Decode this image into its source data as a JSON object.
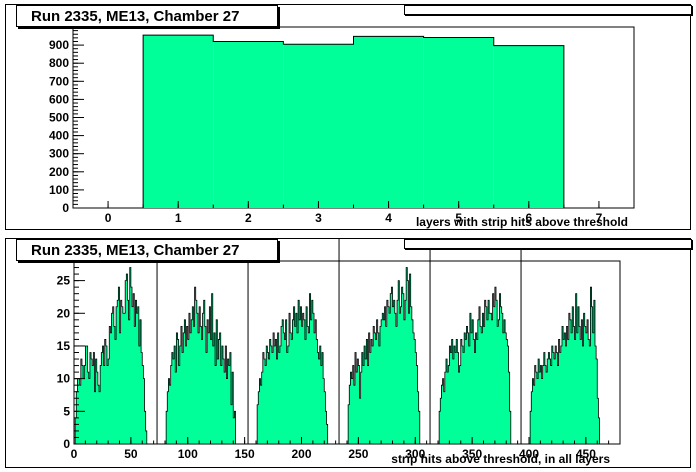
{
  "chart_data": [
    {
      "type": "bar",
      "title": "Run 2335, ME13, Chamber 27",
      "xlabel": "layers with strip hits above threshold",
      "ylabel": "",
      "xlim": [
        -0.5,
        7.5
      ],
      "ylim": [
        0,
        1000
      ],
      "xticks": [
        "0",
        "1",
        "2",
        "3",
        "4",
        "5",
        "6",
        "7"
      ],
      "yticks": [
        "0",
        "100",
        "200",
        "300",
        "400",
        "500",
        "600",
        "700",
        "800",
        "900"
      ],
      "x": [
        1,
        2,
        3,
        4,
        5,
        6
      ],
      "values": [
        955,
        920,
        905,
        948,
        942,
        897
      ],
      "fill_color": "#00ff99"
    },
    {
      "type": "bar",
      "title": "Run 2335, ME13, Chamber 27",
      "xlabel": "strip hits above threshold, in all layers",
      "ylabel": "",
      "xlim": [
        0,
        480
      ],
      "ylim": [
        0,
        28
      ],
      "xticks": [
        "0",
        "50",
        "100",
        "150",
        "200",
        "250",
        "300",
        "350",
        "400",
        "450"
      ],
      "yticks": [
        "0",
        "5",
        "10",
        "15",
        "20",
        "25"
      ],
      "bin_width": 1,
      "segments": [
        {
          "start": 1,
          "values": [
            4,
            8,
            10,
            10,
            9,
            13,
            12,
            10,
            12,
            15,
            15,
            11,
            10,
            14,
            13,
            12,
            14,
            8,
            13,
            11,
            9,
            8,
            12,
            14,
            15,
            12,
            16,
            15,
            12,
            13,
            18,
            17,
            20,
            21,
            18,
            16,
            21,
            22,
            24,
            17,
            22,
            21,
            20,
            20,
            25,
            26,
            22,
            19,
            27,
            24,
            21,
            23,
            18,
            22,
            20,
            21,
            15,
            19,
            14,
            12,
            10,
            5,
            2
          ]
        },
        {
          "start": 81,
          "values": [
            5,
            8,
            10,
            9,
            12,
            14,
            13,
            15,
            11,
            17,
            16,
            12,
            15,
            18,
            14,
            17,
            19,
            15,
            18,
            16,
            20,
            17,
            19,
            21,
            18,
            24,
            22,
            20,
            17,
            21,
            18,
            16,
            20,
            22,
            18,
            14,
            19,
            17,
            21,
            16,
            23,
            15,
            17,
            12,
            19,
            13,
            16,
            17,
            12,
            15,
            13,
            11,
            15,
            10,
            13,
            12,
            14,
            6,
            11,
            4,
            5
          ]
        },
        {
          "start": 161,
          "values": [
            6,
            8,
            10,
            9,
            11,
            14,
            13,
            12,
            15,
            14,
            13,
            16,
            15,
            14,
            17,
            15,
            16,
            13,
            17,
            14,
            15,
            18,
            19,
            17,
            16,
            19,
            14,
            15,
            20,
            17,
            16,
            19,
            21,
            18,
            20,
            17,
            22,
            19,
            21,
            18,
            20,
            19,
            16,
            21,
            18,
            17,
            23,
            19,
            22,
            20,
            17,
            19,
            16,
            14,
            13,
            15,
            12,
            14,
            10,
            8,
            5,
            3
          ]
        },
        {
          "start": 241,
          "values": [
            6,
            9,
            11,
            10,
            12,
            9,
            14,
            11,
            13,
            12,
            7,
            11,
            14,
            12,
            15,
            13,
            16,
            12,
            17,
            14,
            16,
            15,
            18,
            17,
            16,
            19,
            17,
            15,
            18,
            19,
            20,
            19,
            21,
            18,
            22,
            21,
            20,
            23,
            24,
            21,
            22,
            20,
            18,
            22,
            25,
            20,
            21,
            24,
            23,
            19,
            22,
            27,
            25,
            20,
            26,
            21,
            19,
            17,
            16,
            14,
            12,
            8,
            5
          ]
        },
        {
          "start": 321,
          "values": [
            5,
            7,
            9,
            10,
            8,
            11,
            13,
            11,
            12,
            15,
            14,
            16,
            13,
            15,
            14,
            16,
            14,
            11,
            12,
            16,
            15,
            14,
            17,
            16,
            18,
            17,
            15,
            20,
            17,
            19,
            16,
            14,
            17,
            16,
            19,
            21,
            18,
            17,
            20,
            18,
            22,
            21,
            19,
            22,
            20,
            20,
            19,
            23,
            21,
            24,
            22,
            18,
            19,
            23,
            21,
            20,
            17,
            19,
            17,
            16,
            15,
            11,
            5
          ]
        },
        {
          "start": 401,
          "values": [
            5,
            8,
            10,
            9,
            12,
            11,
            10,
            13,
            11,
            12,
            10,
            12,
            14,
            12,
            11,
            13,
            14,
            13,
            12,
            15,
            14,
            13,
            15,
            14,
            12,
            16,
            14,
            15,
            18,
            16,
            17,
            15,
            18,
            16,
            20,
            19,
            17,
            21,
            18,
            16,
            23,
            17,
            21,
            18,
            16,
            19,
            15,
            20,
            18,
            17,
            19,
            16,
            15,
            24,
            21,
            17,
            22,
            15,
            13,
            7,
            4
          ]
        }
      ],
      "fill_color": "#00ff99"
    }
  ]
}
